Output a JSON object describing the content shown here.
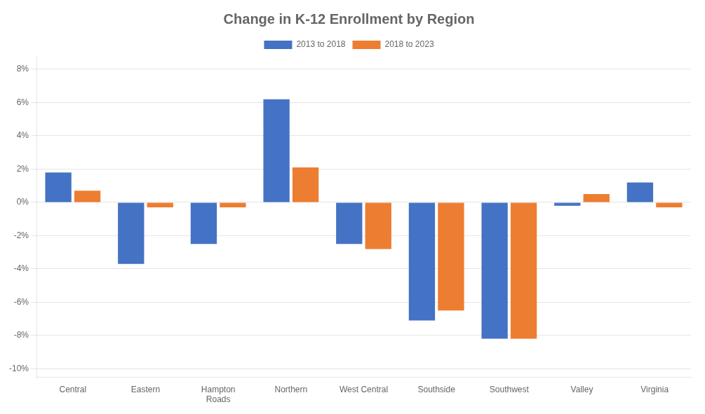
{
  "chart_data": {
    "type": "bar",
    "title": "Change in K-12 Enrollment by Region",
    "categories": [
      "Central",
      "Eastern",
      "Hampton\nRoads",
      "Northern",
      "West Central",
      "Southside",
      "Southwest",
      "Valley",
      "Virginia"
    ],
    "series": [
      {
        "name": "2013 to 2018",
        "color": "#4472C4",
        "values": [
          0.018,
          -0.037,
          -0.025,
          0.062,
          -0.025,
          -0.071,
          -0.082,
          -0.002,
          0.012
        ]
      },
      {
        "name": "2018 to 2023",
        "color": "#ED7D31",
        "values": [
          0.007,
          -0.003,
          -0.003,
          0.021,
          -0.028,
          -0.065,
          -0.082,
          0.005,
          -0.003
        ]
      }
    ],
    "ylim": [
      -0.105,
      0.088
    ],
    "yticks": [
      {
        "value": -0.1,
        "label": "-10%"
      },
      {
        "value": -0.08,
        "label": "-8%"
      },
      {
        "value": -0.06,
        "label": "-6%"
      },
      {
        "value": -0.04,
        "label": "-4%"
      },
      {
        "value": -0.02,
        "label": "-2%"
      },
      {
        "value": 0.0,
        "label": "0%"
      },
      {
        "value": 0.02,
        "label": "2%"
      },
      {
        "value": 0.04,
        "label": "4%"
      },
      {
        "value": 0.06,
        "label": "6%"
      },
      {
        "value": 0.08,
        "label": "8%"
      }
    ],
    "grid": true,
    "legend": "top"
  }
}
